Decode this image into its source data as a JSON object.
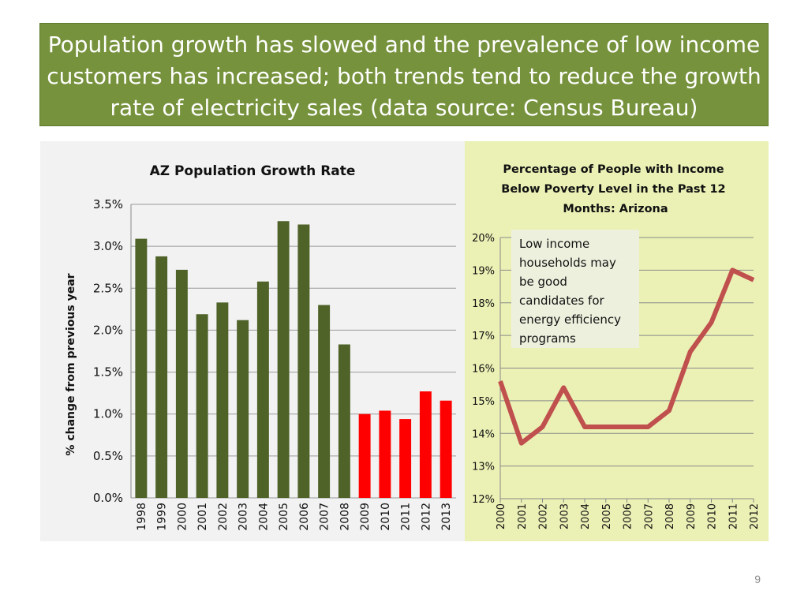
{
  "slide": {
    "title": "Population growth has slowed and the prevalence of low income customers has increased; both trends tend to reduce the growth rate of electricity sales (data source: Census Bureau)",
    "page_number": "9",
    "callout": "Low income households may be good candidates for energy efficiency programs",
    "colors": {
      "title_bg": "#76923c",
      "bar_green": "#4f6228",
      "bar_red": "#ff0000",
      "line_red": "#c0504d"
    }
  },
  "chart_data": [
    {
      "type": "bar",
      "title": "AZ Population Growth Rate",
      "xlabel": "",
      "ylabel": "% change from previous year",
      "categories": [
        "1998",
        "1999",
        "2000",
        "2001",
        "2002",
        "2003",
        "2004",
        "2005",
        "2006",
        "2007",
        "2008",
        "2009",
        "2010",
        "2011",
        "2012",
        "2013"
      ],
      "values": [
        3.09,
        2.88,
        2.72,
        2.19,
        2.33,
        2.12,
        2.58,
        3.3,
        3.26,
        2.3,
        1.83,
        1.0,
        1.04,
        0.94,
        1.27,
        1.16
      ],
      "highlight_from_index": 11,
      "ylim": [
        0,
        3.5
      ],
      "yticks": [
        "0.0%",
        "0.5%",
        "1.0%",
        "1.5%",
        "2.0%",
        "2.5%",
        "3.0%",
        "3.5%"
      ],
      "grid": true,
      "legend": "none"
    },
    {
      "type": "line",
      "title": "Percentage of People with Income Below Poverty Level in the Past 12 Months:  Arizona",
      "xlabel": "",
      "ylabel": "",
      "x": [
        "2000",
        "2001",
        "2002",
        "2003",
        "2004",
        "2005",
        "2006",
        "2007",
        "2008",
        "2009",
        "2010",
        "2011",
        "2012"
      ],
      "values": [
        15.6,
        13.7,
        14.2,
        15.4,
        14.2,
        14.2,
        14.2,
        14.2,
        14.7,
        16.5,
        17.4,
        19.0,
        18.7
      ],
      "ylim": [
        12,
        20
      ],
      "yticks": [
        "12%",
        "13%",
        "14%",
        "15%",
        "16%",
        "17%",
        "18%",
        "19%",
        "20%"
      ],
      "grid": true,
      "legend": "none"
    }
  ]
}
